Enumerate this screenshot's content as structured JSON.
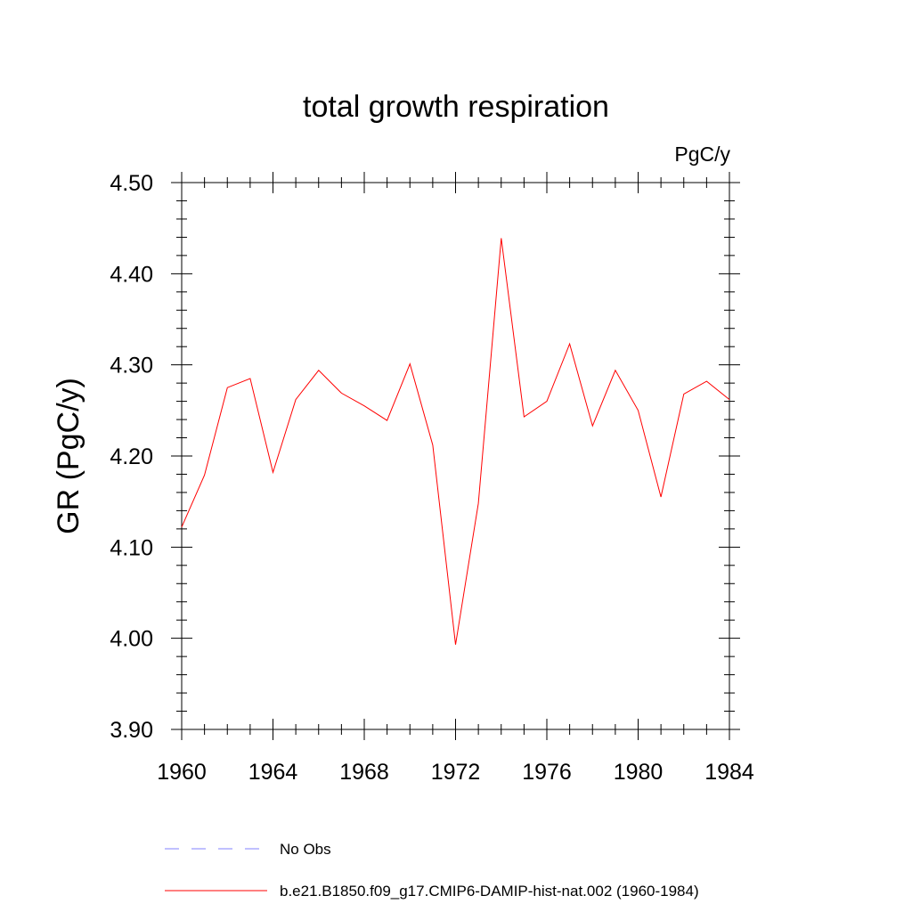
{
  "chart_data": {
    "type": "line",
    "title": "total growth respiration",
    "units_label": "PgC/y",
    "ylabel": "GR  (PgC/y)",
    "xlabel": "",
    "xlim": [
      1960,
      1984
    ],
    "ylim": [
      3.9,
      4.5
    ],
    "x_ticks": [
      "1960",
      "1964",
      "1968",
      "1972",
      "1976",
      "1980",
      "1984"
    ],
    "y_ticks": [
      "4.50",
      "4.40",
      "4.30",
      "4.20",
      "4.10",
      "4.00",
      "3.90"
    ],
    "grid": false,
    "legend_position": "bottom",
    "series": [
      {
        "name": "b.e21.B1850.f09_g17.CMIP6-DAMIP-hist-nat.002 (1960-1984)",
        "color": "#ff0000",
        "style": "solid",
        "x": [
          1960,
          1961,
          1962,
          1963,
          1964,
          1965,
          1966,
          1967,
          1968,
          1969,
          1970,
          1971,
          1972,
          1973,
          1974,
          1975,
          1976,
          1977,
          1978,
          1979,
          1980,
          1981,
          1982,
          1983,
          1984
        ],
        "values": [
          4.122,
          4.179,
          4.275,
          4.285,
          4.182,
          4.262,
          4.294,
          4.269,
          4.255,
          4.239,
          4.301,
          4.212,
          3.993,
          4.148,
          4.439,
          4.243,
          4.26,
          4.323,
          4.233,
          4.294,
          4.25,
          4.155,
          4.268,
          4.282,
          4.262
        ]
      }
    ],
    "legend": [
      {
        "label": "No Obs",
        "color": "#8080ff",
        "style": "dashed"
      },
      {
        "label": "b.e21.B1850.f09_g17.CMIP6-DAMIP-hist-nat.002 (1960-1984)",
        "color": "#ff0000",
        "style": "solid"
      }
    ]
  }
}
